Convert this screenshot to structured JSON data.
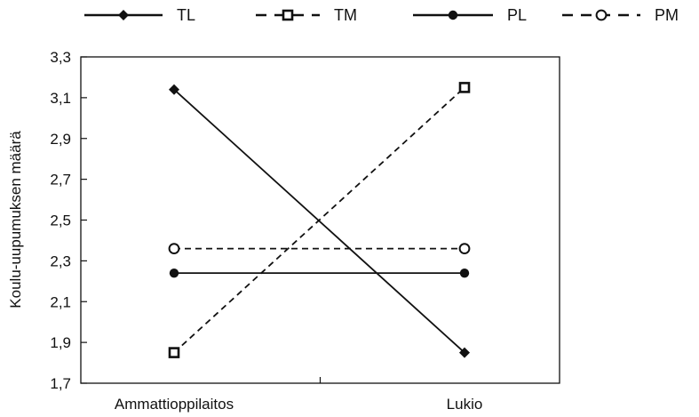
{
  "chart_data": {
    "type": "line",
    "title": "",
    "xlabel": "",
    "ylabel": "Koulu-uupumuksen määrä",
    "categories": [
      "Ammattioppilaitos",
      "Lukio"
    ],
    "ylim": [
      1.7,
      3.3
    ],
    "yticks": [
      "1,7",
      "1,9",
      "2,1",
      "2,3",
      "2,5",
      "2,7",
      "2,9",
      "3,1",
      "3,3"
    ],
    "grid": false,
    "legend_position": "top",
    "series": [
      {
        "name": "TL",
        "values": [
          3.14,
          1.85
        ],
        "line": "solid",
        "marker": "diamond-filled"
      },
      {
        "name": "TM",
        "values": [
          1.85,
          3.15
        ],
        "line": "dashed",
        "marker": "square-open"
      },
      {
        "name": "PL",
        "values": [
          2.24,
          2.24
        ],
        "line": "solid",
        "marker": "circle-filled"
      },
      {
        "name": "PM",
        "values": [
          2.36,
          2.36
        ],
        "line": "dashed",
        "marker": "circle-open"
      }
    ]
  }
}
